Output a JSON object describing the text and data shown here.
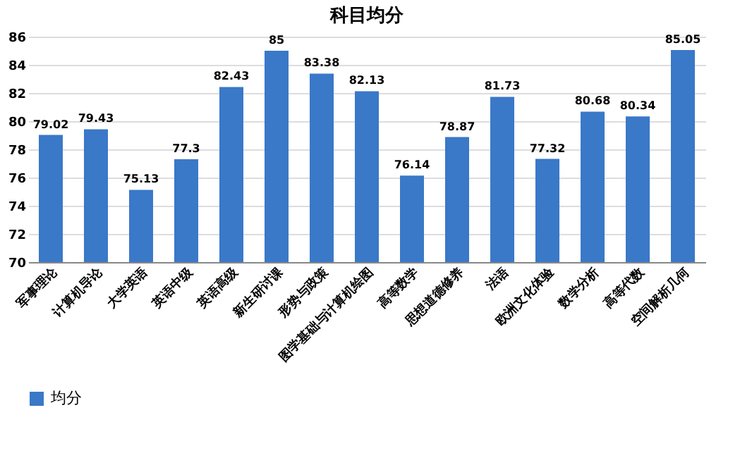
{
  "chart_data": {
    "type": "bar",
    "title": "科目均分",
    "categories": [
      "军事理论",
      "计算机导论",
      "大学英语",
      "英语中级",
      "英语高级",
      "新生研讨课",
      "形势与政策",
      "图学基础与计算机绘图",
      "高等数学",
      "思想道德修养",
      "法语",
      "欧洲文化体验",
      "数学分析",
      "高等代数",
      "空间解析几何"
    ],
    "series": [
      {
        "name": "均分",
        "color": "#3a78c8",
        "values": [
          79.02,
          79.43,
          75.13,
          77.3,
          82.43,
          85,
          83.38,
          82.13,
          76.14,
          78.87,
          81.73,
          77.32,
          80.68,
          80.34,
          85.05
        ]
      }
    ],
    "ylim": [
      70,
      86
    ],
    "yticks": [
      70,
      72,
      74,
      76,
      78,
      80,
      82,
      84,
      86
    ],
    "grid": "y",
    "legend": "bottom",
    "data_labels": true
  }
}
